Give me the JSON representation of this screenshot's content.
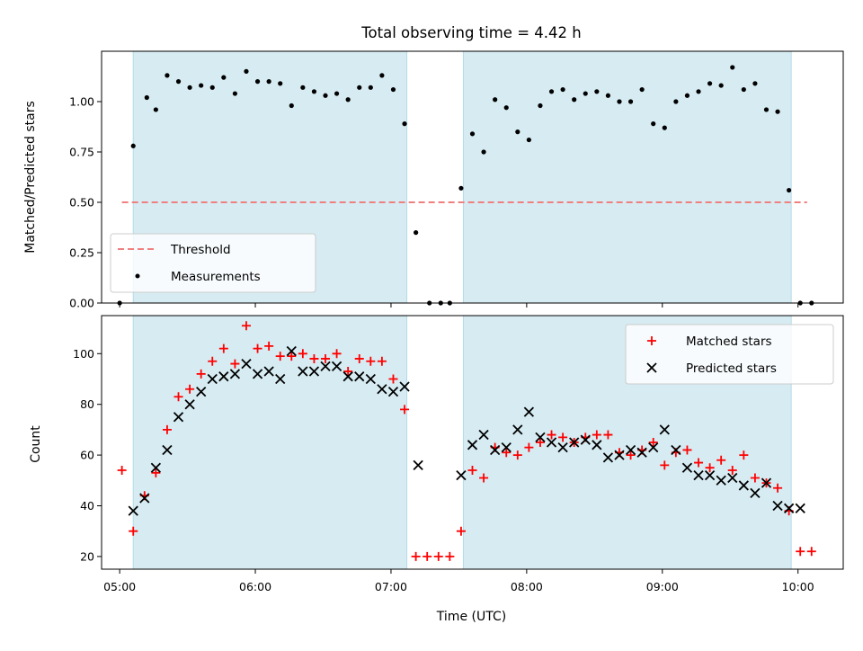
{
  "chart_data": [
    {
      "type": "scatter",
      "title": "Total observing time = 4.42 h",
      "ylabel": "Matched/Predicted stars",
      "xlabel": "",
      "xlim": [
        "04:52",
        "10:20"
      ],
      "ylim": [
        0,
        1.25
      ],
      "yticks": [
        0.0,
        0.25,
        0.5,
        0.75,
        1.0
      ],
      "ytick_labels": [
        "0.00",
        "0.25",
        "0.50",
        "0.75",
        "1.00"
      ],
      "xticks": [
        "05:00",
        "06:00",
        "07:00",
        "08:00",
        "09:00",
        "10:00"
      ],
      "grid": false,
      "legend_position": "lower-left",
      "shaded_intervals": [
        {
          "start": "05:06",
          "end": "07:07"
        },
        {
          "start": "07:32",
          "end": "09:57"
        }
      ],
      "threshold": {
        "name": "Threshold",
        "value": 0.5,
        "x_start": "05:01",
        "x_end": "10:04",
        "color": "#f08080"
      },
      "series": [
        {
          "name": "Measurements",
          "color": "#000000",
          "marker": "dot",
          "x": [
            "05:00",
            "05:06",
            "05:12",
            "05:16",
            "05:21",
            "05:26",
            "05:31",
            "05:36",
            "05:41",
            "05:46",
            "05:51",
            "05:56",
            "06:01",
            "06:06",
            "06:11",
            "06:16",
            "06:21",
            "06:26",
            "06:31",
            "06:36",
            "06:41",
            "06:46",
            "06:51",
            "06:56",
            "07:01",
            "07:06",
            "07:11",
            "07:17",
            "07:22",
            "07:26",
            "07:31",
            "07:36",
            "07:41",
            "07:46",
            "07:51",
            "07:56",
            "08:01",
            "08:06",
            "08:11",
            "08:16",
            "08:21",
            "08:26",
            "08:31",
            "08:36",
            "08:41",
            "08:46",
            "08:51",
            "08:56",
            "09:01",
            "09:06",
            "09:11",
            "09:16",
            "09:21",
            "09:26",
            "09:31",
            "09:36",
            "09:41",
            "09:46",
            "09:51",
            "09:56",
            "10:01",
            "10:06"
          ],
          "values": [
            0.0,
            0.78,
            1.02,
            0.96,
            1.13,
            1.1,
            1.07,
            1.08,
            1.07,
            1.12,
            1.04,
            1.15,
            1.1,
            1.1,
            1.09,
            0.98,
            1.07,
            1.05,
            1.03,
            1.04,
            1.01,
            1.07,
            1.07,
            1.13,
            1.06,
            0.89,
            0.35,
            0.0,
            0.0,
            0.0,
            0.57,
            0.84,
            0.75,
            1.01,
            0.97,
            0.85,
            0.81,
            0.98,
            1.05,
            1.06,
            1.01,
            1.04,
            1.05,
            1.03,
            1.0,
            1.0,
            1.06,
            0.89,
            0.87,
            1.0,
            1.03,
            1.05,
            1.09,
            1.08,
            1.17,
            1.06,
            1.09,
            0.96,
            0.95,
            0.56,
            0.0,
            0.0
          ]
        }
      ]
    },
    {
      "type": "scatter",
      "title": "",
      "ylabel": "Count",
      "xlabel": "Time (UTC)",
      "xlim": [
        "04:52",
        "10:20"
      ],
      "ylim": [
        15,
        115
      ],
      "yticks": [
        20,
        40,
        60,
        80,
        100
      ],
      "ytick_labels": [
        "20",
        "40",
        "60",
        "80",
        "100"
      ],
      "xticks": [
        "05:00",
        "06:00",
        "07:00",
        "08:00",
        "09:00",
        "10:00"
      ],
      "grid": false,
      "legend_position": "upper-right",
      "shaded_intervals": [
        {
          "start": "05:06",
          "end": "07:07"
        },
        {
          "start": "07:32",
          "end": "09:57"
        }
      ],
      "series": [
        {
          "name": "Matched stars",
          "color": "#ff0000",
          "marker": "plus",
          "x": [
            "05:01",
            "05:06",
            "05:11",
            "05:16",
            "05:21",
            "05:26",
            "05:31",
            "05:36",
            "05:41",
            "05:46",
            "05:51",
            "05:56",
            "06:01",
            "06:06",
            "06:11",
            "06:16",
            "06:21",
            "06:26",
            "06:31",
            "06:36",
            "06:41",
            "06:46",
            "06:51",
            "06:56",
            "07:01",
            "07:06",
            "07:11",
            "07:16",
            "07:21",
            "07:26",
            "07:31",
            "07:36",
            "07:41",
            "07:46",
            "07:51",
            "07:56",
            "08:01",
            "08:06",
            "08:11",
            "08:16",
            "08:21",
            "08:26",
            "08:31",
            "08:36",
            "08:41",
            "08:46",
            "08:51",
            "08:56",
            "09:01",
            "09:06",
            "09:11",
            "09:16",
            "09:21",
            "09:26",
            "09:31",
            "09:36",
            "09:41",
            "09:46",
            "09:51",
            "09:56",
            "10:01",
            "10:06"
          ],
          "values": [
            54,
            30,
            44,
            53,
            70,
            83,
            86,
            92,
            97,
            102,
            96,
            111,
            102,
            103,
            99,
            99,
            100,
            98,
            98,
            100,
            93,
            98,
            97,
            97,
            90,
            78,
            20,
            20,
            20,
            20,
            30,
            54,
            51,
            63,
            61,
            60,
            63,
            65,
            68,
            67,
            65,
            67,
            68,
            68,
            61,
            60,
            62,
            65,
            56,
            61,
            62,
            57,
            55,
            58,
            54,
            60,
            51,
            49,
            47,
            38,
            22,
            22
          ]
        },
        {
          "name": "Predicted stars",
          "color": "#000000",
          "marker": "x",
          "x": [
            "05:06",
            "05:11",
            "05:16",
            "05:21",
            "05:26",
            "05:31",
            "05:36",
            "05:41",
            "05:46",
            "05:51",
            "05:56",
            "06:01",
            "06:06",
            "06:11",
            "06:16",
            "06:21",
            "06:26",
            "06:31",
            "06:36",
            "06:41",
            "06:46",
            "06:51",
            "06:56",
            "07:01",
            "07:06",
            "07:12",
            "07:31",
            "07:36",
            "07:41",
            "07:46",
            "07:51",
            "07:56",
            "08:01",
            "08:06",
            "08:11",
            "08:16",
            "08:21",
            "08:26",
            "08:31",
            "08:36",
            "08:41",
            "08:46",
            "08:51",
            "08:56",
            "09:01",
            "09:06",
            "09:11",
            "09:16",
            "09:21",
            "09:26",
            "09:31",
            "09:36",
            "09:41",
            "09:46",
            "09:51",
            "09:56",
            "10:01"
          ],
          "values": [
            38,
            43,
            55,
            62,
            75,
            80,
            85,
            90,
            91,
            92,
            96,
            92,
            93,
            90,
            101,
            93,
            93,
            95,
            95,
            91,
            91,
            90,
            86,
            85,
            87,
            56,
            52,
            64,
            68,
            62,
            63,
            70,
            77,
            67,
            65,
            63,
            65,
            66,
            64,
            59,
            60,
            62,
            61,
            63,
            70,
            62,
            55,
            52,
            52,
            50,
            51,
            48,
            45,
            49,
            40,
            39,
            39
          ]
        }
      ]
    }
  ]
}
